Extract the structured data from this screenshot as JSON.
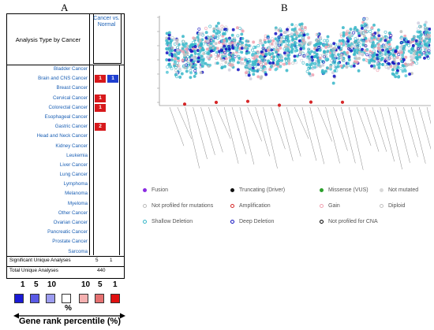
{
  "panels": {
    "a": "A",
    "b": "B"
  },
  "tableA": {
    "header_left": "Analysis Type by Cancer",
    "header_right": "Cancer vs. Normal",
    "rows": [
      {
        "name": "Bladder Cancer",
        "v1": "",
        "v2": ""
      },
      {
        "name": "Brain and CNS Cancer",
        "v1": "1",
        "v2": "1"
      },
      {
        "name": "Breast Cancer",
        "v1": "",
        "v2": ""
      },
      {
        "name": "Cervical Cancer",
        "v1": "1",
        "v2": ""
      },
      {
        "name": "Colorectal Cancer",
        "v1": "1",
        "v2": ""
      },
      {
        "name": "Esophageal Cancer",
        "v1": "",
        "v2": ""
      },
      {
        "name": "Gastric Cancer",
        "v1": "2",
        "v2": ""
      },
      {
        "name": "Head and Neck Cancer",
        "v1": "",
        "v2": ""
      },
      {
        "name": "Kidney Cancer",
        "v1": "",
        "v2": ""
      },
      {
        "name": "Leukemia",
        "v1": "",
        "v2": ""
      },
      {
        "name": "Liver Cancer",
        "v1": "",
        "v2": ""
      },
      {
        "name": "Lung Cancer",
        "v1": "",
        "v2": ""
      },
      {
        "name": "Lymphoma",
        "v1": "",
        "v2": ""
      },
      {
        "name": "Melanoma",
        "v1": "",
        "v2": ""
      },
      {
        "name": "Myeloma",
        "v1": "",
        "v2": ""
      },
      {
        "name": "Other Cancer",
        "v1": "",
        "v2": ""
      },
      {
        "name": "Ovarian Cancer",
        "v1": "",
        "v2": ""
      },
      {
        "name": "Pancreatic Cancer",
        "v1": "",
        "v2": ""
      },
      {
        "name": "Prostate Cancer",
        "v1": "",
        "v2": ""
      },
      {
        "name": "Sarcoma",
        "v1": "",
        "v2": ""
      }
    ],
    "significant_label": "Significant Unique Analyses",
    "significant_v1": "5",
    "significant_v2": "1",
    "total_label": "Total Unique Analyses",
    "total_value": "440",
    "colors": {
      "up": "#d7191c",
      "down": "#1f3fd0"
    }
  },
  "legendA": {
    "numbers": [
      "1",
      "5",
      "10",
      "10",
      "5",
      "1"
    ],
    "percent": "%",
    "caption": "Gene rank percentile (%)",
    "swatches": [
      "#1a1ad6",
      "#5a5ae6",
      "#9c9cf0",
      "#ffffff",
      "#f4b0b0",
      "#e57070",
      "#e01010"
    ]
  },
  "legendB": {
    "items": [
      {
        "label": "Fusion",
        "color": "#8a2be2"
      },
      {
        "label": "Truncating (Driver)",
        "color": "#111111"
      },
      {
        "label": "Missense (VUS)",
        "color": "#2ca02c"
      },
      {
        "label": "Not mutated",
        "color": "#d8d8d8"
      },
      {
        "label": "Not profiled for mutations",
        "color": "#bbbbbb"
      },
      {
        "label": "Amplification",
        "color": "#d62728"
      },
      {
        "label": "Gain",
        "color": "#f0a0b0"
      },
      {
        "label": "Diploid",
        "color": "#c0c0c0"
      },
      {
        "label": "Shallow Deletion",
        "color": "#37b7c8"
      },
      {
        "label": "Deep Deletion",
        "color": "#1010c0"
      },
      {
        "label": "Not profiled for CNA",
        "color": "#000000"
      }
    ]
  }
}
